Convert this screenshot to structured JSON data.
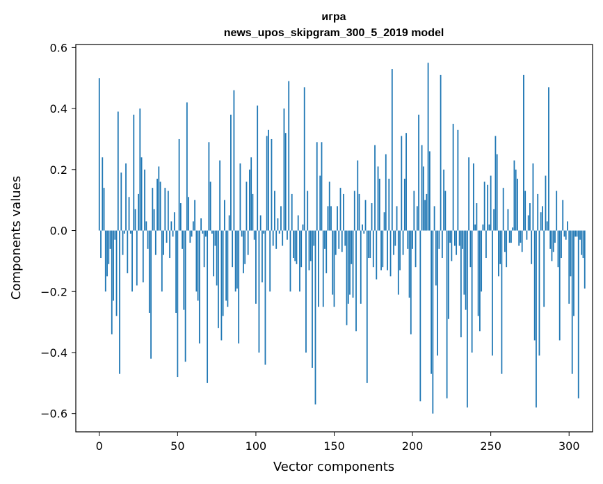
{
  "chart_data": {
    "type": "bar",
    "title_line1": "игра",
    "title_line2": "news_upos_skipgram_300_5_2019 model",
    "xlabel": "Vector components",
    "ylabel": "Components values",
    "xlim": [
      -15,
      315
    ],
    "ylim": [
      -0.66,
      0.61
    ],
    "xticks": [
      0,
      50,
      100,
      150,
      200,
      250,
      300
    ],
    "xtick_labels": [
      "0",
      "50",
      "100",
      "150",
      "200",
      "250",
      "300"
    ],
    "yticks": [
      -0.6,
      -0.4,
      -0.2,
      0.0,
      0.2,
      0.4,
      0.6
    ],
    "ytick_labels": [
      "−0.6",
      "−0.4",
      "−0.2",
      "0.0",
      "0.2",
      "0.4",
      "0.6"
    ],
    "bar_color": "#1f77b4",
    "values": [
      0.5,
      -0.09,
      0.24,
      0.14,
      -0.2,
      -0.15,
      -0.11,
      -0.06,
      -0.34,
      -0.23,
      -0.03,
      -0.28,
      0.39,
      -0.47,
      0.19,
      -0.08,
      -0.01,
      0.22,
      -0.14,
      0.11,
      -0.01,
      -0.2,
      0.38,
      0.07,
      -0.18,
      0.12,
      0.4,
      0.24,
      -0.17,
      0.2,
      0.03,
      -0.06,
      -0.27,
      -0.42,
      0.14,
      0.07,
      -0.08,
      0.17,
      0.21,
      0.16,
      -0.2,
      -0.08,
      0.14,
      -0.04,
      0.13,
      -0.09,
      0.03,
      -0.02,
      0.06,
      -0.27,
      -0.48,
      0.3,
      0.09,
      -0.06,
      -0.26,
      -0.43,
      0.42,
      0.11,
      -0.04,
      -0.02,
      0.03,
      0.1,
      -0.2,
      -0.23,
      -0.37,
      0.04,
      -0.01,
      -0.12,
      -0.02,
      -0.5,
      0.29,
      0.16,
      -0.01,
      -0.15,
      -0.05,
      -0.18,
      -0.32,
      0.23,
      -0.36,
      -0.28,
      0.1,
      -0.23,
      -0.25,
      0.05,
      0.38,
      -0.12,
      0.46,
      -0.2,
      -0.19,
      -0.37,
      0.22,
      -0.02,
      -0.14,
      -0.11,
      0.16,
      -0.08,
      0.2,
      0.24,
      0.12,
      -0.03,
      -0.24,
      0.41,
      -0.4,
      0.05,
      -0.17,
      -0.01,
      -0.44,
      0.31,
      0.33,
      -0.2,
      0.3,
      -0.05,
      0.13,
      -0.06,
      0.04,
      -0.01,
      0.08,
      -0.05,
      0.4,
      0.32,
      -0.03,
      0.49,
      -0.2,
      0.12,
      -0.09,
      -0.1,
      -0.11,
      0.05,
      -0.2,
      -0.12,
      0.02,
      0.47,
      -0.4,
      0.13,
      -0.13,
      -0.1,
      -0.45,
      -0.05,
      -0.57,
      0.29,
      -0.25,
      0.18,
      0.29,
      -0.25,
      -0.06,
      -0.14,
      0.08,
      0.16,
      0.08,
      -0.21,
      -0.25,
      -0.08,
      0.08,
      -0.06,
      0.14,
      -0.07,
      0.12,
      -0.05,
      -0.31,
      -0.24,
      -0.21,
      -0.11,
      -0.22,
      0.13,
      -0.33,
      0.23,
      0.12,
      -0.24,
      0.02,
      -0.01,
      0.1,
      -0.5,
      -0.09,
      -0.09,
      0.09,
      -0.12,
      0.28,
      -0.16,
      0.21,
      0.17,
      -0.13,
      -0.12,
      0.06,
      0.25,
      -0.13,
      0.17,
      -0.15,
      0.53,
      -0.08,
      -0.05,
      0.08,
      -0.21,
      -0.13,
      0.31,
      -0.08,
      0.17,
      0.32,
      -0.06,
      -0.22,
      -0.34,
      -0.06,
      0.13,
      -0.12,
      0.08,
      0.38,
      -0.56,
      0.28,
      0.21,
      0.1,
      0.12,
      0.55,
      0.26,
      -0.47,
      -0.6,
      0.08,
      -0.18,
      -0.41,
      -0.06,
      0.51,
      -0.09,
      0.2,
      0.13,
      -0.55,
      -0.29,
      -0.04,
      -0.1,
      0.35,
      -0.05,
      -0.08,
      0.33,
      -0.05,
      -0.35,
      -0.06,
      -0.21,
      -0.26,
      -0.58,
      0.24,
      -0.12,
      -0.4,
      0.22,
      0.02,
      0.09,
      -0.28,
      -0.33,
      -0.2,
      0.02,
      0.16,
      -0.09,
      0.15,
      0.02,
      0.18,
      -0.41,
      0.07,
      0.31,
      0.25,
      -0.15,
      -0.11,
      -0.47,
      0.14,
      -0.07,
      -0.12,
      0.07,
      -0.04,
      -0.04,
      0.01,
      0.23,
      0.2,
      0.17,
      -0.05,
      -0.04,
      -0.07,
      0.51,
      0.13,
      -0.03,
      0.05,
      0.09,
      -0.11,
      0.22,
      -0.36,
      -0.58,
      0.12,
      -0.41,
      0.06,
      0.08,
      -0.25,
      0.18,
      0.03,
      0.47,
      -0.06,
      -0.1,
      -0.07,
      -0.04,
      0.13,
      -0.12,
      -0.36,
      -0.09,
      0.1,
      -0.02,
      -0.03,
      0.03,
      -0.24,
      -0.15,
      -0.47,
      -0.28,
      -0.02,
      -0.02,
      -0.55,
      -0.03,
      -0.08,
      -0.09,
      -0.19
    ]
  }
}
